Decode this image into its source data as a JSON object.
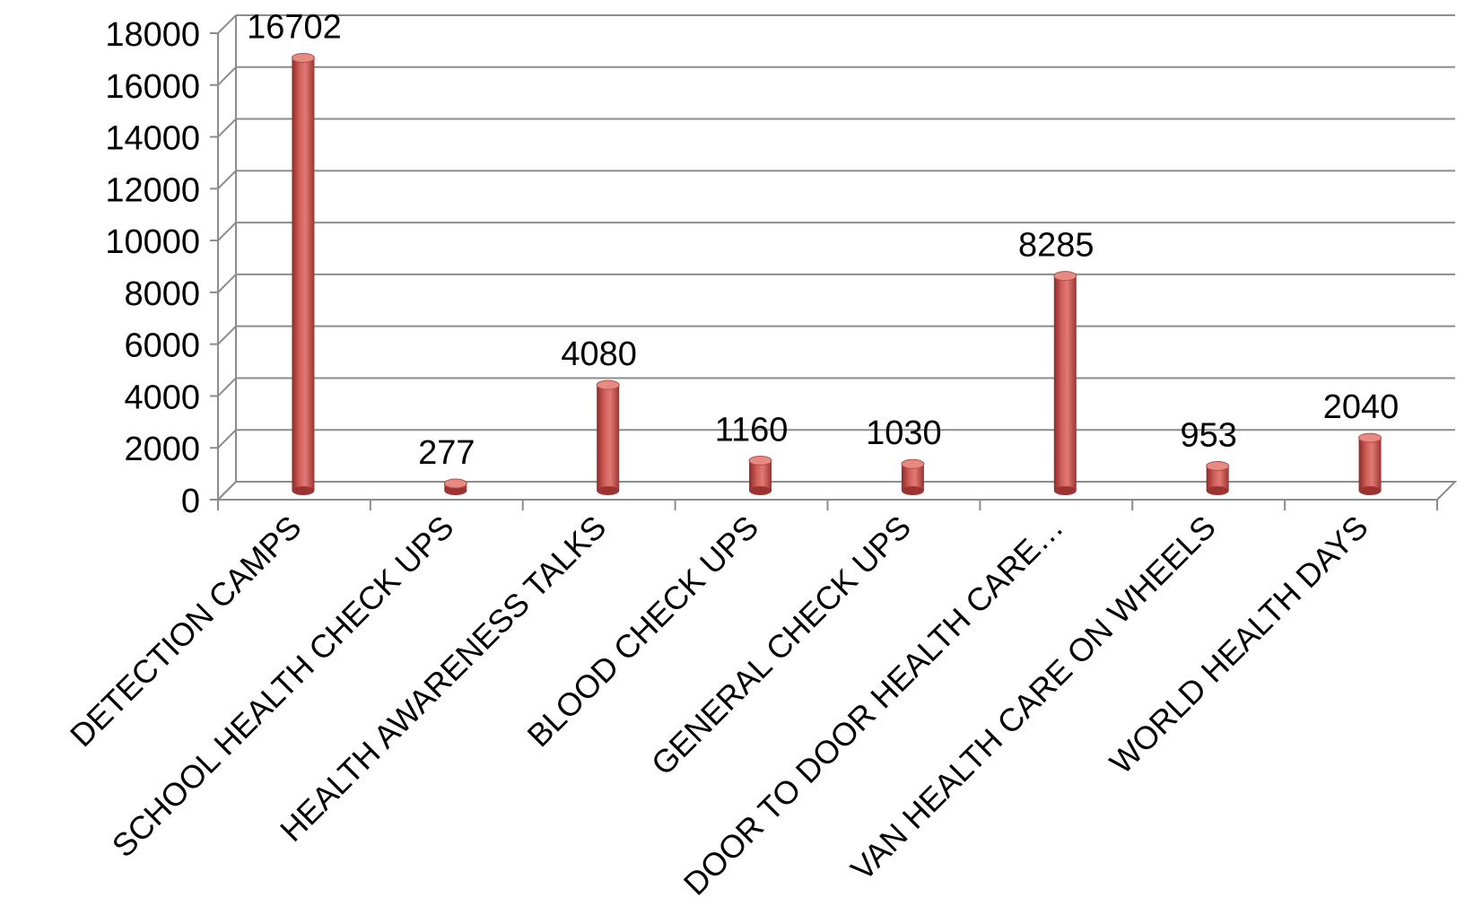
{
  "chart_data": {
    "type": "bar",
    "style": "3d-cylinder",
    "title": "",
    "xlabel": "",
    "ylabel": "",
    "categories": [
      "DETECTION CAMPS",
      "SCHOOL HEALTH CHECK UPS",
      "HEALTH AWARENESS TALKS",
      "BLOOD CHECK UPS",
      "GENERAL CHECK UPS",
      "DOOR TO DOOR HEALTH CARE…",
      "VAN HEALTH CARE ON WHEELS",
      "WORLD HEALTH DAYS"
    ],
    "values": [
      16702,
      277,
      4080,
      1160,
      1030,
      8285,
      953,
      2040
    ],
    "data_labels": [
      "16702",
      "277",
      "4080",
      "1160",
      "1030",
      "8285",
      "953",
      "2040"
    ],
    "ylim": [
      0,
      18000
    ],
    "yticks": [
      "0",
      "2000",
      "4000",
      "6000",
      "8000",
      "10000",
      "12000",
      "14000",
      "16000",
      "18000"
    ],
    "grid": true,
    "legend": "none",
    "bar_color": "#c0504d"
  }
}
